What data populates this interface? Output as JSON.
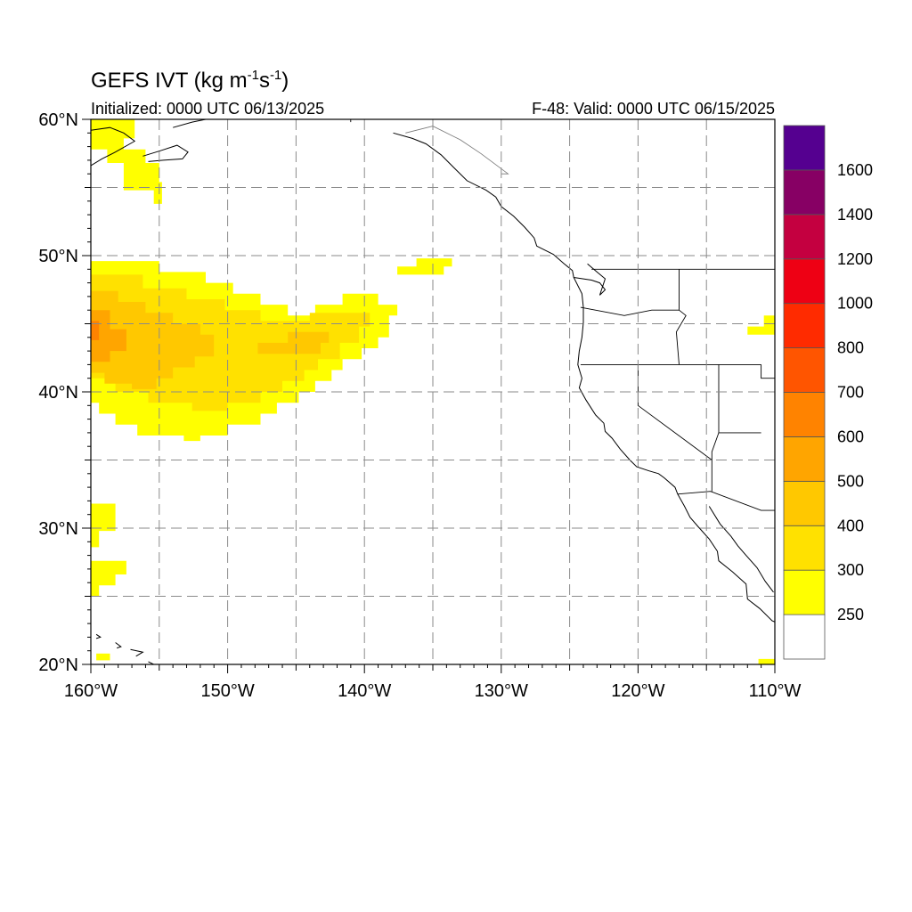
{
  "title": {
    "main_prefix": "GEFS IVT (kg m",
    "exp1": "-1",
    "mid": "s",
    "exp2": "-1",
    "suffix": ")",
    "left": "Initialized: 0000 UTC 06/13/2025",
    "right": "F-48: Valid: 0000 UTC 06/15/2025"
  },
  "map": {
    "lon_range": [
      -160,
      -110
    ],
    "lat_range": [
      20,
      60
    ],
    "grid_lons": [
      -155,
      -150,
      -145,
      -140,
      -135,
      -130,
      -125,
      -120,
      -115
    ],
    "grid_lats": [
      25,
      30,
      35,
      40,
      45,
      50,
      55
    ]
  },
  "axes": {
    "lon_ticks": [
      {
        "lon": -160,
        "label": "160°W"
      },
      {
        "lon": -150,
        "label": "150°W"
      },
      {
        "lon": -140,
        "label": "140°W"
      },
      {
        "lon": -130,
        "label": "130°W"
      },
      {
        "lon": -120,
        "label": "120°W"
      },
      {
        "lon": -110,
        "label": "110°W"
      }
    ],
    "lat_ticks": [
      {
        "lat": 60,
        "label": "60°N"
      },
      {
        "lat": 50,
        "label": "50°N"
      },
      {
        "lat": 40,
        "label": "40°N"
      },
      {
        "lat": 30,
        "label": "30°N"
      },
      {
        "lat": 20,
        "label": "20°N"
      }
    ]
  },
  "colorbar": {
    "levels": [
      "250",
      "300",
      "400",
      "500",
      "600",
      "700",
      "800",
      "1000",
      "1200",
      "1400",
      "1600"
    ],
    "colors": [
      "#ffffff",
      "#ffff00",
      "#ffe100",
      "#ffc800",
      "#ffa500",
      "#ff8300",
      "#ff5500",
      "#ff2b00",
      "#ee0014",
      "#c40040",
      "#870064",
      "#550090"
    ]
  },
  "ivt_regions": [
    {
      "level": "250-300",
      "color": "#ffff00",
      "lonlat": [
        [
          -160,
          49.6
        ],
        [
          -155,
          49.6
        ],
        [
          -155,
          48.8
        ],
        [
          -151.6,
          48.8
        ],
        [
          -151.6,
          48
        ],
        [
          -149.6,
          48
        ],
        [
          -149.6,
          47.2
        ],
        [
          -147.6,
          47.2
        ],
        [
          -147.6,
          46.4
        ],
        [
          -145.6,
          46.4
        ],
        [
          -145.6,
          45.6
        ],
        [
          -143.6,
          45.6
        ],
        [
          -143.6,
          46.4
        ],
        [
          -141.6,
          46.4
        ],
        [
          -141.6,
          47.2
        ],
        [
          -139,
          47.2
        ],
        [
          -139,
          46.4
        ],
        [
          -137.6,
          46.4
        ],
        [
          -137.6,
          45.6
        ],
        [
          -138.2,
          45.6
        ],
        [
          -138.2,
          44
        ],
        [
          -139,
          44
        ],
        [
          -139,
          43.2
        ],
        [
          -140.2,
          43.2
        ],
        [
          -140.2,
          42.4
        ],
        [
          -141.6,
          42.4
        ],
        [
          -141.6,
          41.6
        ],
        [
          -142.4,
          41.6
        ],
        [
          -142.4,
          40.8
        ],
        [
          -143.6,
          40.8
        ],
        [
          -143.6,
          40
        ],
        [
          -144.8,
          40
        ],
        [
          -144.8,
          39.2
        ],
        [
          -146.4,
          39.2
        ],
        [
          -146.4,
          38.4
        ],
        [
          -147.6,
          38.4
        ],
        [
          -147.6,
          37.6
        ],
        [
          -150,
          37.6
        ],
        [
          -150,
          36.8
        ],
        [
          -152,
          36.8
        ],
        [
          -152,
          36.4
        ],
        [
          -153.2,
          36.4
        ],
        [
          -153.2,
          36.8
        ],
        [
          -156.6,
          36.8
        ],
        [
          -156.6,
          37.6
        ],
        [
          -158.2,
          37.6
        ],
        [
          -158.2,
          38.4
        ],
        [
          -159.4,
          38.4
        ],
        [
          -159.4,
          39.2
        ],
        [
          -160,
          39.2
        ]
      ]
    },
    {
      "level": "300-400",
      "color": "#ffe100",
      "lonlat": [
        [
          -160,
          48.6
        ],
        [
          -156.2,
          48.6
        ],
        [
          -156.2,
          47.6
        ],
        [
          -153,
          47.6
        ],
        [
          -153,
          46.8
        ],
        [
          -150.2,
          46.8
        ],
        [
          -150.2,
          46
        ],
        [
          -147.6,
          46
        ],
        [
          -147.6,
          45.2
        ],
        [
          -144,
          45.2
        ],
        [
          -144,
          45.8
        ],
        [
          -139.6,
          45.8
        ],
        [
          -139.6,
          44.8
        ],
        [
          -140.4,
          44.8
        ],
        [
          -140.4,
          43.6
        ],
        [
          -141.8,
          43.6
        ],
        [
          -141.8,
          42.4
        ],
        [
          -143.4,
          42.4
        ],
        [
          -143.4,
          41.6
        ],
        [
          -144.4,
          41.6
        ],
        [
          -144.4,
          40.8
        ],
        [
          -146,
          40.8
        ],
        [
          -146,
          40
        ],
        [
          -147.6,
          40
        ],
        [
          -147.6,
          39.2
        ],
        [
          -150,
          39.2
        ],
        [
          -150,
          38.6
        ],
        [
          -152.6,
          38.6
        ],
        [
          -152.6,
          39.2
        ],
        [
          -155.8,
          39.2
        ],
        [
          -155.8,
          40
        ],
        [
          -158.2,
          40
        ],
        [
          -158.2,
          41
        ],
        [
          -160,
          41
        ]
      ]
    },
    {
      "level": "400-500",
      "color": "#ffc800",
      "lonlat": [
        [
          -160,
          47.4
        ],
        [
          -158,
          47.4
        ],
        [
          -158,
          46.6
        ],
        [
          -156,
          46.6
        ],
        [
          -156,
          45.8
        ],
        [
          -154,
          45.8
        ],
        [
          -154,
          45
        ],
        [
          -152,
          45
        ],
        [
          -152,
          44.2
        ],
        [
          -151,
          44.2
        ],
        [
          -151,
          42.6
        ],
        [
          -152.4,
          42.6
        ],
        [
          -152.4,
          41.8
        ],
        [
          -154,
          41.8
        ],
        [
          -154,
          41
        ],
        [
          -155.2,
          41
        ],
        [
          -155.2,
          40.2
        ],
        [
          -157,
          40.2
        ],
        [
          -157,
          40.6
        ],
        [
          -159,
          40.6
        ],
        [
          -159,
          41.4
        ],
        [
          -160,
          41.4
        ]
      ]
    },
    {
      "level": "400-500",
      "color": "#ffc800",
      "lonlat": [
        [
          -147.8,
          43.6
        ],
        [
          -145.6,
          43.6
        ],
        [
          -145.6,
          44.4
        ],
        [
          -142.6,
          44.4
        ],
        [
          -142.6,
          43.6
        ],
        [
          -143.2,
          43.6
        ],
        [
          -143.2,
          42.8
        ],
        [
          -147.8,
          42.8
        ]
      ]
    },
    {
      "level": "500-600",
      "color": "#ffa500",
      "lonlat": [
        [
          -160,
          46
        ],
        [
          -158.6,
          46
        ],
        [
          -158.6,
          44.6
        ],
        [
          -157.4,
          44.6
        ],
        [
          -157.4,
          43
        ],
        [
          -158.6,
          43
        ],
        [
          -158.6,
          42.2
        ],
        [
          -160,
          42.2
        ]
      ]
    },
    {
      "level": "600-700",
      "color": "#ff8300",
      "lonlat": [
        [
          -160,
          45.2
        ],
        [
          -159.4,
          45.2
        ],
        [
          -159.4,
          43.8
        ],
        [
          -160,
          43.8
        ]
      ]
    },
    {
      "level": "250-300",
      "color": "#ffff00",
      "lonlat": [
        [
          -160,
          60
        ],
        [
          -156.8,
          60
        ],
        [
          -156.8,
          58.6
        ],
        [
          -157.6,
          58.6
        ],
        [
          -157.6,
          57.8
        ],
        [
          -156,
          57.8
        ],
        [
          -156,
          56.8
        ],
        [
          -155,
          56.8
        ],
        [
          -155,
          55.4
        ],
        [
          -154.8,
          55.4
        ],
        [
          -154.8,
          53.8
        ],
        [
          -155.4,
          53.8
        ],
        [
          -155.4,
          54.8
        ],
        [
          -157.6,
          54.8
        ],
        [
          -157.6,
          56.8
        ],
        [
          -158.8,
          56.8
        ],
        [
          -158.8,
          57.8
        ],
        [
          -160,
          57.8
        ]
      ]
    },
    {
      "level": "250-300",
      "color": "#ffff00",
      "lonlat": [
        [
          -137.6,
          48.6
        ],
        [
          -134.2,
          48.6
        ],
        [
          -134.2,
          49.2
        ],
        [
          -133.6,
          49.2
        ],
        [
          -133.6,
          49.8
        ],
        [
          -136.2,
          49.8
        ],
        [
          -136.2,
          49.2
        ],
        [
          -137.6,
          49.2
        ]
      ]
    },
    {
      "level": "250-300",
      "color": "#ffff00",
      "lonlat": [
        [
          -160,
          31.8
        ],
        [
          -158.2,
          31.8
        ],
        [
          -158.2,
          29.8
        ],
        [
          -159.4,
          29.8
        ],
        [
          -159.4,
          28.6
        ],
        [
          -160,
          28.6
        ]
      ]
    },
    {
      "level": "250-300",
      "color": "#ffff00",
      "lonlat": [
        [
          -160,
          27.6
        ],
        [
          -157.4,
          27.6
        ],
        [
          -157.4,
          26.6
        ],
        [
          -158.2,
          26.6
        ],
        [
          -158.2,
          25.8
        ],
        [
          -159.4,
          25.8
        ],
        [
          -159.4,
          25
        ],
        [
          -160,
          25
        ]
      ]
    },
    {
      "level": "250-300",
      "color": "#ffff00",
      "lonlat": [
        [
          -159.6,
          20.8
        ],
        [
          -158.6,
          20.8
        ],
        [
          -158.6,
          20.3
        ],
        [
          -159.6,
          20.3
        ]
      ]
    },
    {
      "level": "250-300",
      "color": "#ffff00",
      "lonlat": [
        [
          -111.2,
          20.4
        ],
        [
          -110,
          20.4
        ],
        [
          -110,
          20
        ],
        [
          -111.2,
          20
        ]
      ]
    },
    {
      "level": "250-300",
      "color": "#ffff00",
      "lonlat": [
        [
          -110.8,
          45.6
        ],
        [
          -110,
          45.6
        ],
        [
          -110,
          44.2
        ],
        [
          -112,
          44.2
        ],
        [
          -112,
          44.8
        ],
        [
          -110.8,
          44.8
        ]
      ]
    }
  ],
  "coastlines": [
    [
      [
        -160,
        59.2
      ],
      [
        -158.6,
        59.4
      ],
      [
        -157.6,
        59
      ],
      [
        -156.8,
        58.4
      ],
      [
        -158.2,
        57.6
      ],
      [
        -159.2,
        57.1
      ],
      [
        -160,
        56.6
      ]
    ],
    [
      [
        -156.2,
        57.3
      ],
      [
        -154.9,
        57.7
      ],
      [
        -153.7,
        58.1
      ],
      [
        -152.9,
        57.6
      ],
      [
        -153.3,
        57.1
      ],
      [
        -154.7,
        57.0
      ],
      [
        -155.8,
        56.9
      ]
    ],
    [
      [
        -154,
        59.4
      ],
      [
        -152.6,
        59.8
      ],
      [
        -151.6,
        60
      ]
    ],
    [
      [
        -137.9,
        59
      ],
      [
        -136.5,
        58.6
      ],
      [
        -135.5,
        58.2
      ],
      [
        -134.4,
        57.4
      ],
      [
        -133.5,
        56.5
      ],
      [
        -132.5,
        55.5
      ],
      [
        -131.1,
        54.8
      ],
      [
        -130.4,
        54.3
      ],
      [
        -130,
        53.6
      ],
      [
        -129.1,
        52.9
      ],
      [
        -128.3,
        52.1
      ],
      [
        -127.6,
        51.3
      ],
      [
        -127.4,
        50.7
      ],
      [
        -126.2,
        50.1
      ],
      [
        -125.4,
        49.4
      ],
      [
        -124.8,
        48.9
      ],
      [
        -124.7,
        48.4
      ],
      [
        -124.1,
        47.2
      ],
      [
        -124,
        46.2
      ],
      [
        -124,
        45.1
      ],
      [
        -124.1,
        44
      ],
      [
        -124.3,
        43
      ],
      [
        -124.4,
        42
      ],
      [
        -124.1,
        41
      ],
      [
        -124.3,
        40.3
      ],
      [
        -123.8,
        39.4
      ],
      [
        -123.1,
        38.3
      ],
      [
        -122.5,
        37.7
      ],
      [
        -122.4,
        37.1
      ],
      [
        -121.9,
        36.6
      ],
      [
        -121.3,
        35.8
      ],
      [
        -120.6,
        35.0
      ],
      [
        -120.1,
        34.5
      ],
      [
        -119.2,
        34.2
      ],
      [
        -118.5,
        34.0
      ],
      [
        -118.1,
        33.7
      ],
      [
        -117.3,
        33.0
      ],
      [
        -117.1,
        32.5
      ],
      [
        -116.6,
        31.6
      ],
      [
        -116.2,
        30.8
      ],
      [
        -115.6,
        30.1
      ],
      [
        -114.8,
        29.2
      ],
      [
        -114.2,
        28.3
      ],
      [
        -114.1,
        27.6
      ],
      [
        -113.1,
        26.8
      ],
      [
        -112.1,
        25.9
      ],
      [
        -112.0,
        24.8
      ],
      [
        -111.1,
        24.1
      ],
      [
        -110.2,
        23.2
      ],
      [
        -109.5,
        22.9
      ]
    ],
    [
      [
        -114.8,
        31.6
      ],
      [
        -114.0,
        30.3
      ],
      [
        -113.2,
        29.4
      ],
      [
        -112.7,
        28.7
      ],
      [
        -112.1,
        28.0
      ],
      [
        -111.3,
        27.1
      ],
      [
        -110.7,
        26.1
      ],
      [
        -110.1,
        25.3
      ]
    ],
    [
      [
        -124.7,
        48.4
      ],
      [
        -123.4,
        48.2
      ],
      [
        -122.8,
        48.0
      ],
      [
        -122.4,
        47.5
      ],
      [
        -122.8,
        47.1
      ],
      [
        -122.4,
        48.3
      ],
      [
        -123,
        48.8
      ],
      [
        -123.7,
        49.4
      ]
    ],
    [
      [
        -159.6,
        22.2
      ],
      [
        -159.3,
        22.0
      ],
      [
        -159.6,
        21.9
      ]
    ],
    [
      [
        -158.2,
        21.6
      ],
      [
        -157.8,
        21.3
      ],
      [
        -158.1,
        21.2
      ]
    ],
    [
      [
        -157.1,
        21.1
      ],
      [
        -156.2,
        20.9
      ],
      [
        -156.7,
        20.6
      ]
    ],
    [
      [
        -155.8,
        20.2
      ],
      [
        -155.0,
        19.8
      ]
    ]
  ],
  "borders": [
    [
      [
        -141,
        60
      ],
      [
        -141,
        59.8
      ]
    ],
    [
      [
        -123.4,
        49
      ],
      [
        -117,
        49
      ],
      [
        -110,
        49
      ]
    ],
    [
      [
        -124.2,
        46.2
      ],
      [
        -121,
        45.6
      ],
      [
        -119,
        46
      ],
      [
        -117,
        46
      ]
    ],
    [
      [
        -117,
        49
      ],
      [
        -117,
        46
      ],
      [
        -116.5,
        45.6
      ],
      [
        -117.2,
        44.4
      ],
      [
        -117,
        42
      ]
    ],
    [
      [
        -124.2,
        42
      ],
      [
        -111,
        42
      ]
    ],
    [
      [
        -120,
        42
      ],
      [
        -120,
        39
      ],
      [
        -114.6,
        35
      ]
    ],
    [
      [
        -114.1,
        42
      ],
      [
        -114.1,
        37
      ],
      [
        -111,
        37
      ]
    ],
    [
      [
        -114.1,
        37
      ],
      [
        -114.6,
        35.6
      ],
      [
        -114.6,
        35
      ]
    ],
    [
      [
        -111,
        42
      ],
      [
        -111,
        41
      ],
      [
        -110,
        41
      ]
    ],
    [
      [
        -117.1,
        32.5
      ],
      [
        -114.7,
        32.7
      ],
      [
        -111,
        31.3
      ],
      [
        -110,
        31.3
      ]
    ],
    [
      [
        -114.6,
        35
      ],
      [
        -114.6,
        32.7
      ]
    ]
  ],
  "borders_light": [
    [
      [
        -130,
        56
      ],
      [
        -129.5,
        56
      ],
      [
        -131.5,
        57.5
      ],
      [
        -133,
        58.5
      ],
      [
        -135,
        59.5
      ],
      [
        -137,
        59
      ]
    ],
    [
      [
        -110,
        49
      ],
      [
        -110,
        49
      ]
    ]
  ]
}
